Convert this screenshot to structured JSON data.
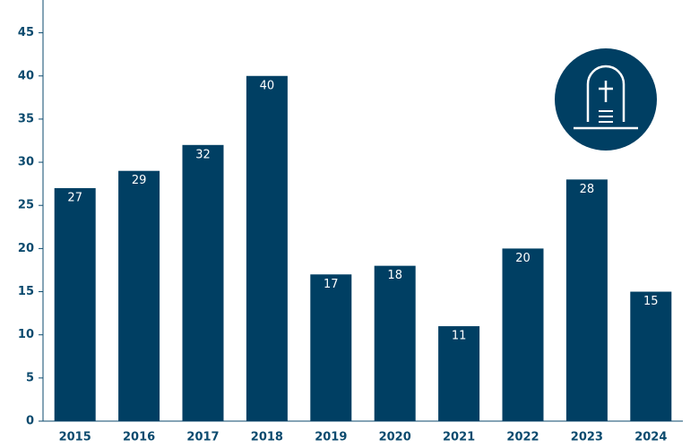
{
  "chart_data": {
    "type": "bar",
    "categories": [
      "2015",
      "2016",
      "2017",
      "2018",
      "2019",
      "2020",
      "2021",
      "2022",
      "2023",
      "2024"
    ],
    "values": [
      27,
      29,
      32,
      40,
      17,
      18,
      11,
      20,
      28,
      15
    ],
    "color": "#003f63",
    "ylim": [
      0,
      48.8
    ],
    "yticks": [
      0,
      5,
      10,
      15,
      20,
      25,
      30,
      35,
      40,
      45
    ],
    "grid": false
  }
}
